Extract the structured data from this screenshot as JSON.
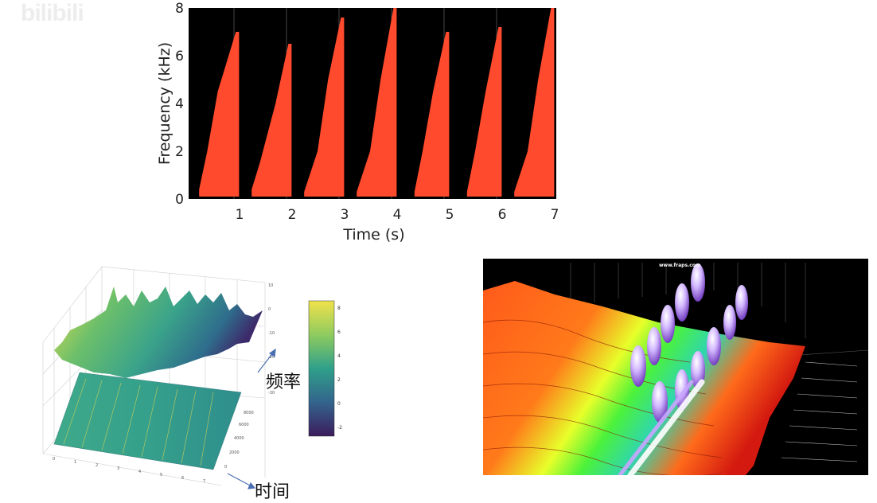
{
  "watermark": "bilibili",
  "chart_data": {
    "type": "area",
    "ylabel": "Frequency (kHz)",
    "xlabel": "Time (s)",
    "xlim": [
      0,
      7
    ],
    "ylim": [
      0,
      8
    ],
    "x_ticks": [
      "1",
      "2",
      "3",
      "4",
      "5",
      "6",
      "7"
    ],
    "y_ticks": [
      "0",
      "2",
      "4",
      "6",
      "8"
    ],
    "grid": false,
    "colors": {
      "fill": "#ff4a2d",
      "background": "#000000"
    },
    "series": [
      {
        "x": [
          0.2,
          0.4,
          0.6,
          0.9
        ],
        "values": [
          0.4,
          2.0,
          4.5,
          7.0
        ]
      },
      {
        "x": [
          1.2,
          1.4,
          1.7,
          1.9
        ],
        "values": [
          0.4,
          1.5,
          4.0,
          6.5
        ]
      },
      {
        "x": [
          2.2,
          2.5,
          2.7,
          2.9
        ],
        "values": [
          0.3,
          2.0,
          5.0,
          7.6
        ]
      },
      {
        "x": [
          3.2,
          3.5,
          3.7,
          3.9
        ],
        "values": [
          0.3,
          2.0,
          5.0,
          8.0
        ]
      },
      {
        "x": [
          4.3,
          4.5,
          4.7,
          4.9
        ],
        "values": [
          0.3,
          2.0,
          4.5,
          7.0
        ]
      },
      {
        "x": [
          5.3,
          5.5,
          5.7,
          5.9
        ],
        "values": [
          0.3,
          2.0,
          4.5,
          7.2
        ]
      },
      {
        "x": [
          6.2,
          6.5,
          6.7,
          6.9
        ],
        "values": [
          0.3,
          2.0,
          5.0,
          8.0
        ]
      }
    ]
  },
  "surface": {
    "freq_label": "频率",
    "time_label": "时间",
    "colorbar_ticks": [
      "8",
      "6",
      "4",
      "2",
      "0",
      "-2"
    ],
    "colors": {
      "high": "#f5e54a",
      "mid": "#2ea38c",
      "low": "#3b1f5e"
    }
  },
  "render3d": {
    "watermark": "www.fraps.com"
  }
}
